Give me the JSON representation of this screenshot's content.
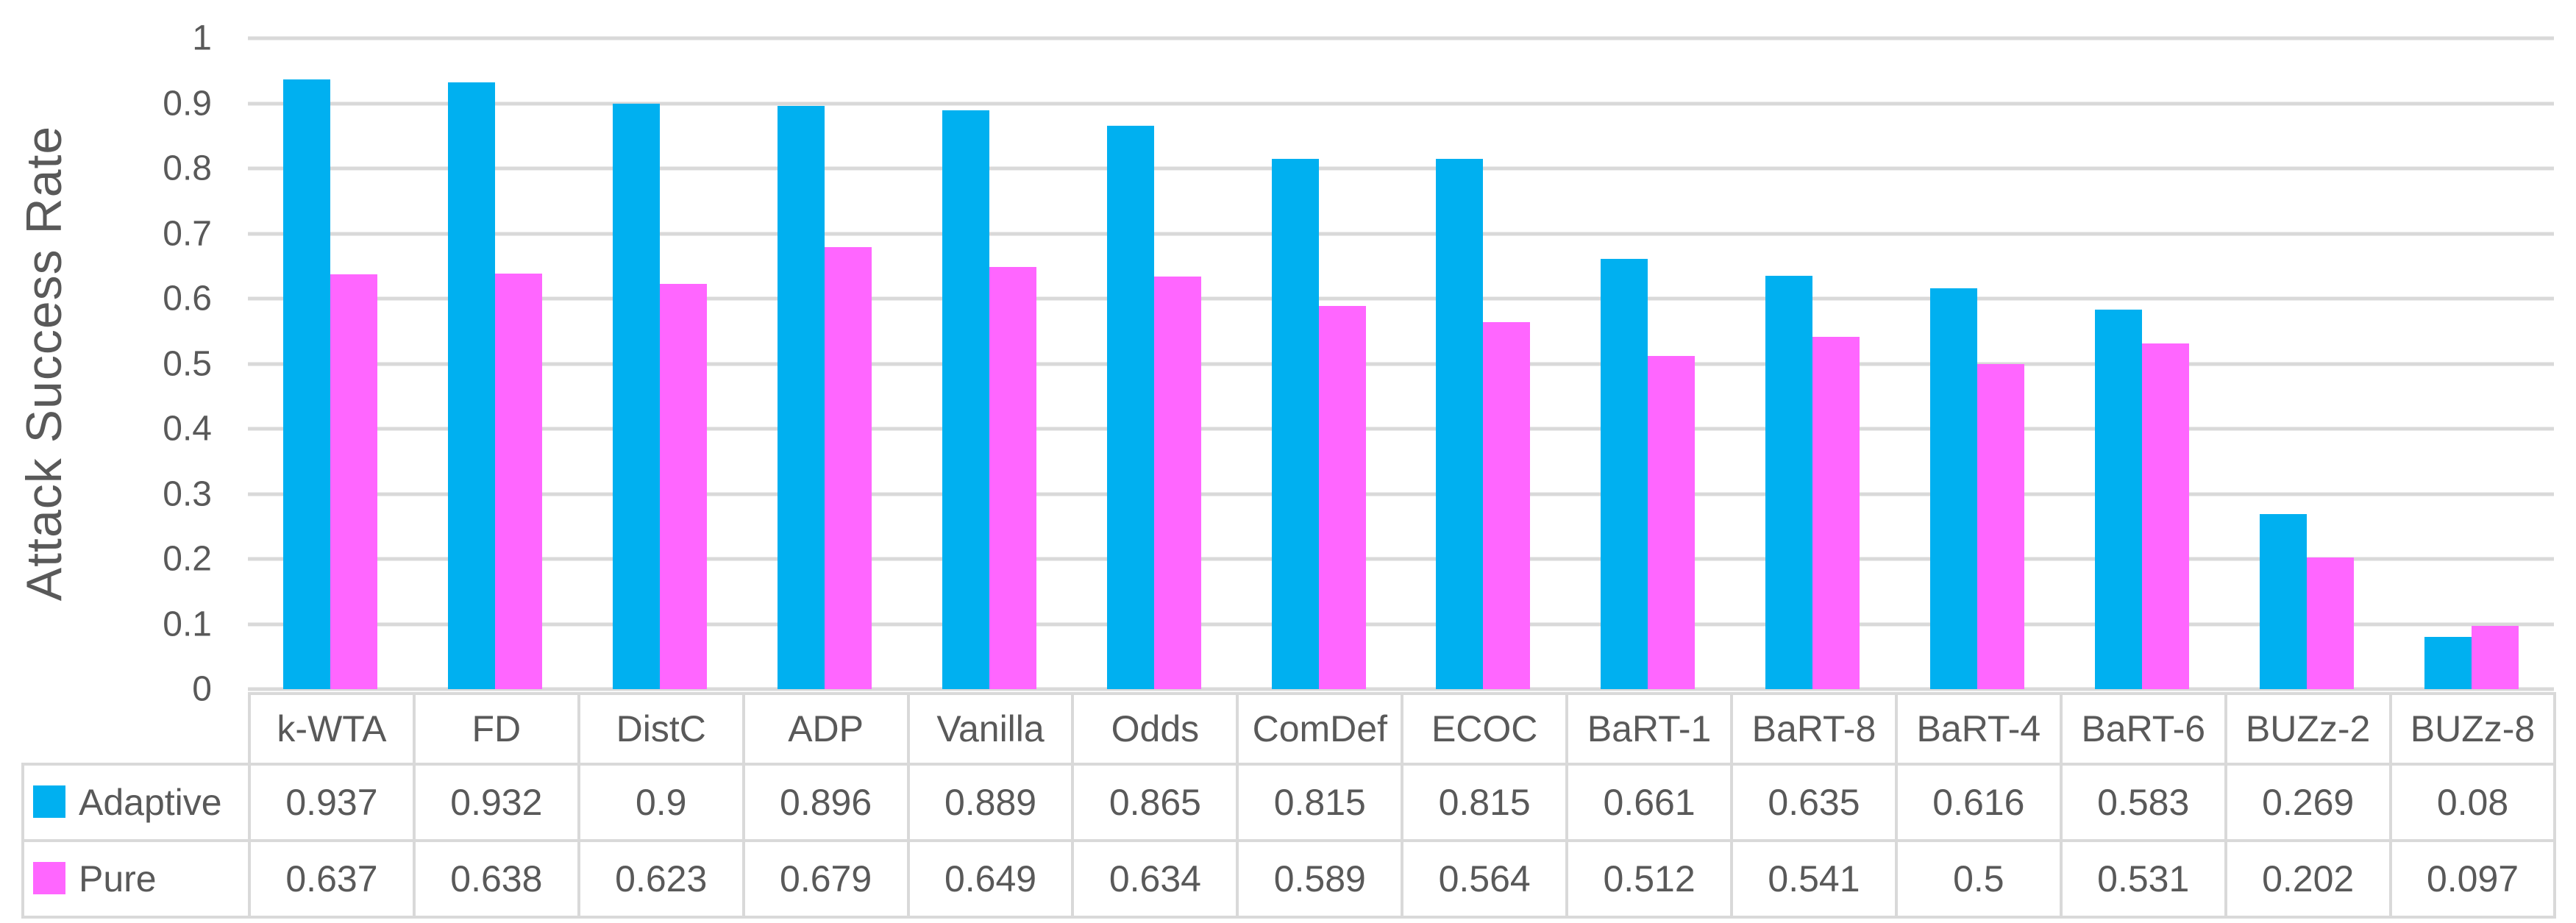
{
  "chart_data": {
    "type": "bar",
    "title": "",
    "xlabel": "",
    "ylabel": "Attack Success Rate",
    "ylim": [
      0,
      1
    ],
    "yticks": [
      0,
      0.1,
      0.2,
      0.3,
      0.4,
      0.5,
      0.6,
      0.7,
      0.8,
      0.9,
      1
    ],
    "ytick_labels": [
      "0",
      "0.1",
      "0.2",
      "0.3",
      "0.4",
      "0.5",
      "0.6",
      "0.7",
      "0.8",
      "0.9",
      "1"
    ],
    "grid": true,
    "legend_position": "data-table-left",
    "categories": [
      "k-WTA",
      "FD",
      "DistC",
      "ADP",
      "Vanilla",
      "Odds",
      "ComDef",
      "ECOC",
      "BaRT-1",
      "BaRT-8",
      "BaRT-4",
      "BaRT-6",
      "BUZz-2",
      "BUZz-8"
    ],
    "series": [
      {
        "name": "Adaptive",
        "color": "#00B0F0",
        "values": [
          "0.937",
          "0.932",
          "0.9",
          "0.896",
          "0.889",
          "0.865",
          "0.815",
          "0.815",
          "0.661",
          "0.635",
          "0.616",
          "0.583",
          "0.269",
          "0.08"
        ]
      },
      {
        "name": "Pure",
        "color": "#FF66FF",
        "values": [
          "0.637",
          "0.638",
          "0.623",
          "0.679",
          "0.649",
          "0.634",
          "0.589",
          "0.564",
          "0.512",
          "0.541",
          "0.5",
          "0.531",
          "0.202",
          "0.097"
        ]
      }
    ]
  },
  "colors": {
    "background": "#FFFFFF",
    "gridline": "#D9D9D9",
    "table_border": "#D9D9D9",
    "text": "#595959",
    "series_adaptive": "#00B0F0",
    "series_pure": "#FF66FF"
  }
}
